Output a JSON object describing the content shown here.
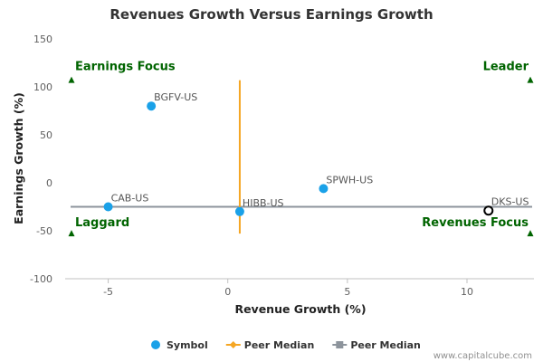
{
  "chart_data": {
    "type": "scatter",
    "title": "Revenues Growth Versus Earnings Growth",
    "xlabel": "Revenue Growth (%)",
    "ylabel": "Earnings Growth (%)",
    "xlim": [
      -6.8,
      12.8
    ],
    "ylim": [
      -100,
      150
    ],
    "x_ticks": [
      -5,
      0,
      5,
      10
    ],
    "y_ticks": [
      150,
      100,
      50,
      0,
      -50,
      -100
    ],
    "grid": false,
    "points": [
      {
        "label": "BGFV-US",
        "x": -3.2,
        "y": 80,
        "style": "filled"
      },
      {
        "label": "CAB-US",
        "x": -5.0,
        "y": -25,
        "style": "filled"
      },
      {
        "label": "HIBB-US",
        "x": 0.5,
        "y": -30,
        "style": "filled"
      },
      {
        "label": "SPWH-US",
        "x": 4.0,
        "y": -6,
        "style": "filled"
      },
      {
        "label": "DKS-US",
        "x": 10.9,
        "y": -29,
        "style": "hollow"
      }
    ],
    "peer_median_revenue": 0.5,
    "peer_median_revenue_span": [
      -53,
      107
    ],
    "peer_median_earnings": -25,
    "quadrants": [
      {
        "label": "Earnings Focus",
        "anchor": "top-left"
      },
      {
        "label": "Leader",
        "anchor": "top-right"
      },
      {
        "label": "Laggard",
        "anchor": "bottom-left"
      },
      {
        "label": "Revenues Focus",
        "anchor": "bottom-right"
      }
    ],
    "quadrant_marker_y": {
      "top": 107,
      "bottom": -53
    },
    "legend": {
      "placement": "bottom-center",
      "items": [
        {
          "label": "Symbol",
          "marker": "circle",
          "color": "#1aa1e8"
        },
        {
          "label": "Peer Median",
          "marker": "diamond",
          "color": "#f5a623"
        },
        {
          "label": "Peer Median",
          "marker": "square",
          "color": "#8d949c"
        }
      ]
    },
    "credit": "www.capitalcube.com"
  },
  "colors": {
    "point": "#1aa1e8",
    "hollow_point": "#000000",
    "revenue_median_line": "#f5a623",
    "earnings_median_line": "#8d949c",
    "quadrant_text": "#006400",
    "axis": "#c0c0c0"
  }
}
